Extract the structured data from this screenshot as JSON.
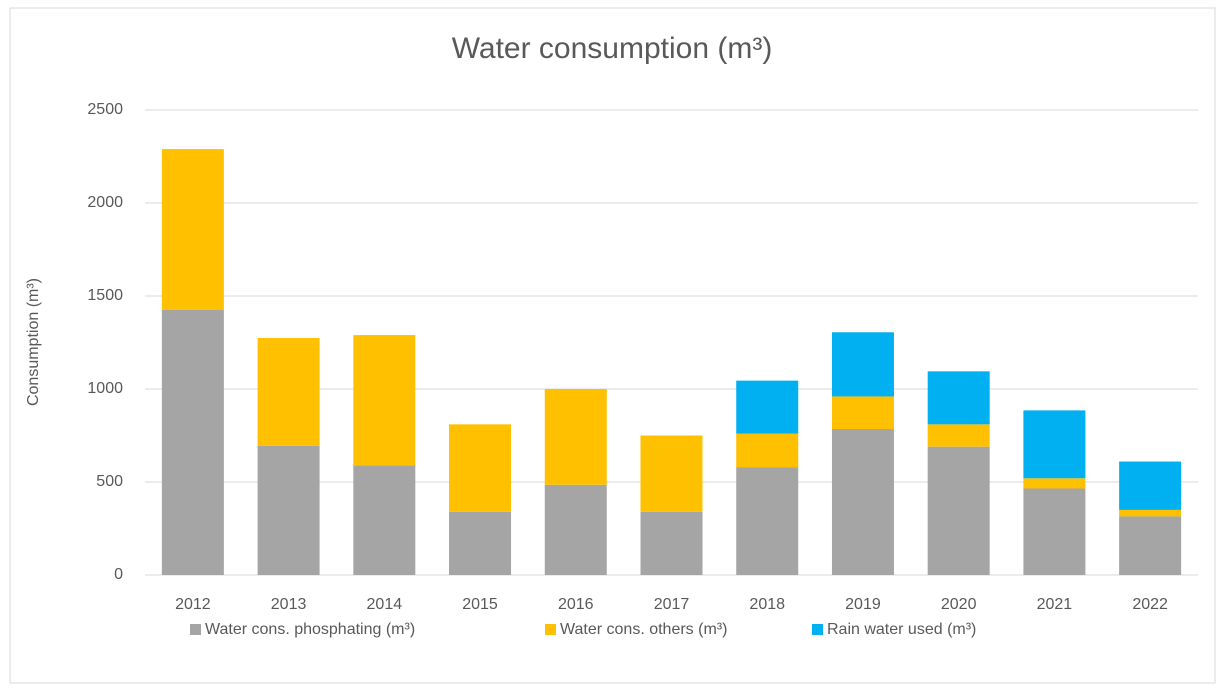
{
  "chart_data": {
    "type": "stacked_bar",
    "title": "Water consumption (m³)",
    "y_label": "Consumption (m³)",
    "categories": [
      "2012",
      "2013",
      "2014",
      "2015",
      "2016",
      "2017",
      "2018",
      "2019",
      "2020",
      "2021",
      "2022"
    ],
    "series": [
      {
        "name": "Water cons. phosphating (m³)",
        "color": "#a5a5a5",
        "values": [
          1425,
          694,
          590,
          340,
          485,
          340,
          580,
          785,
          690,
          465,
          315
        ]
      },
      {
        "name": "Water cons. others (m³)",
        "color": "#ffc000",
        "values": [
          865,
          580,
          700,
          470,
          515,
          410,
          180,
          175,
          120,
          55,
          35
        ]
      },
      {
        "name": "Rain water used (m³)",
        "color": "#00b0f0",
        "values": [
          null,
          null,
          null,
          null,
          null,
          null,
          285,
          345,
          285,
          365,
          260
        ]
      }
    ],
    "ylim": [
      0,
      2500
    ],
    "yticks": [
      0,
      500,
      1000,
      1500,
      2000,
      2500
    ],
    "grid": true,
    "legend": "bottom"
  }
}
